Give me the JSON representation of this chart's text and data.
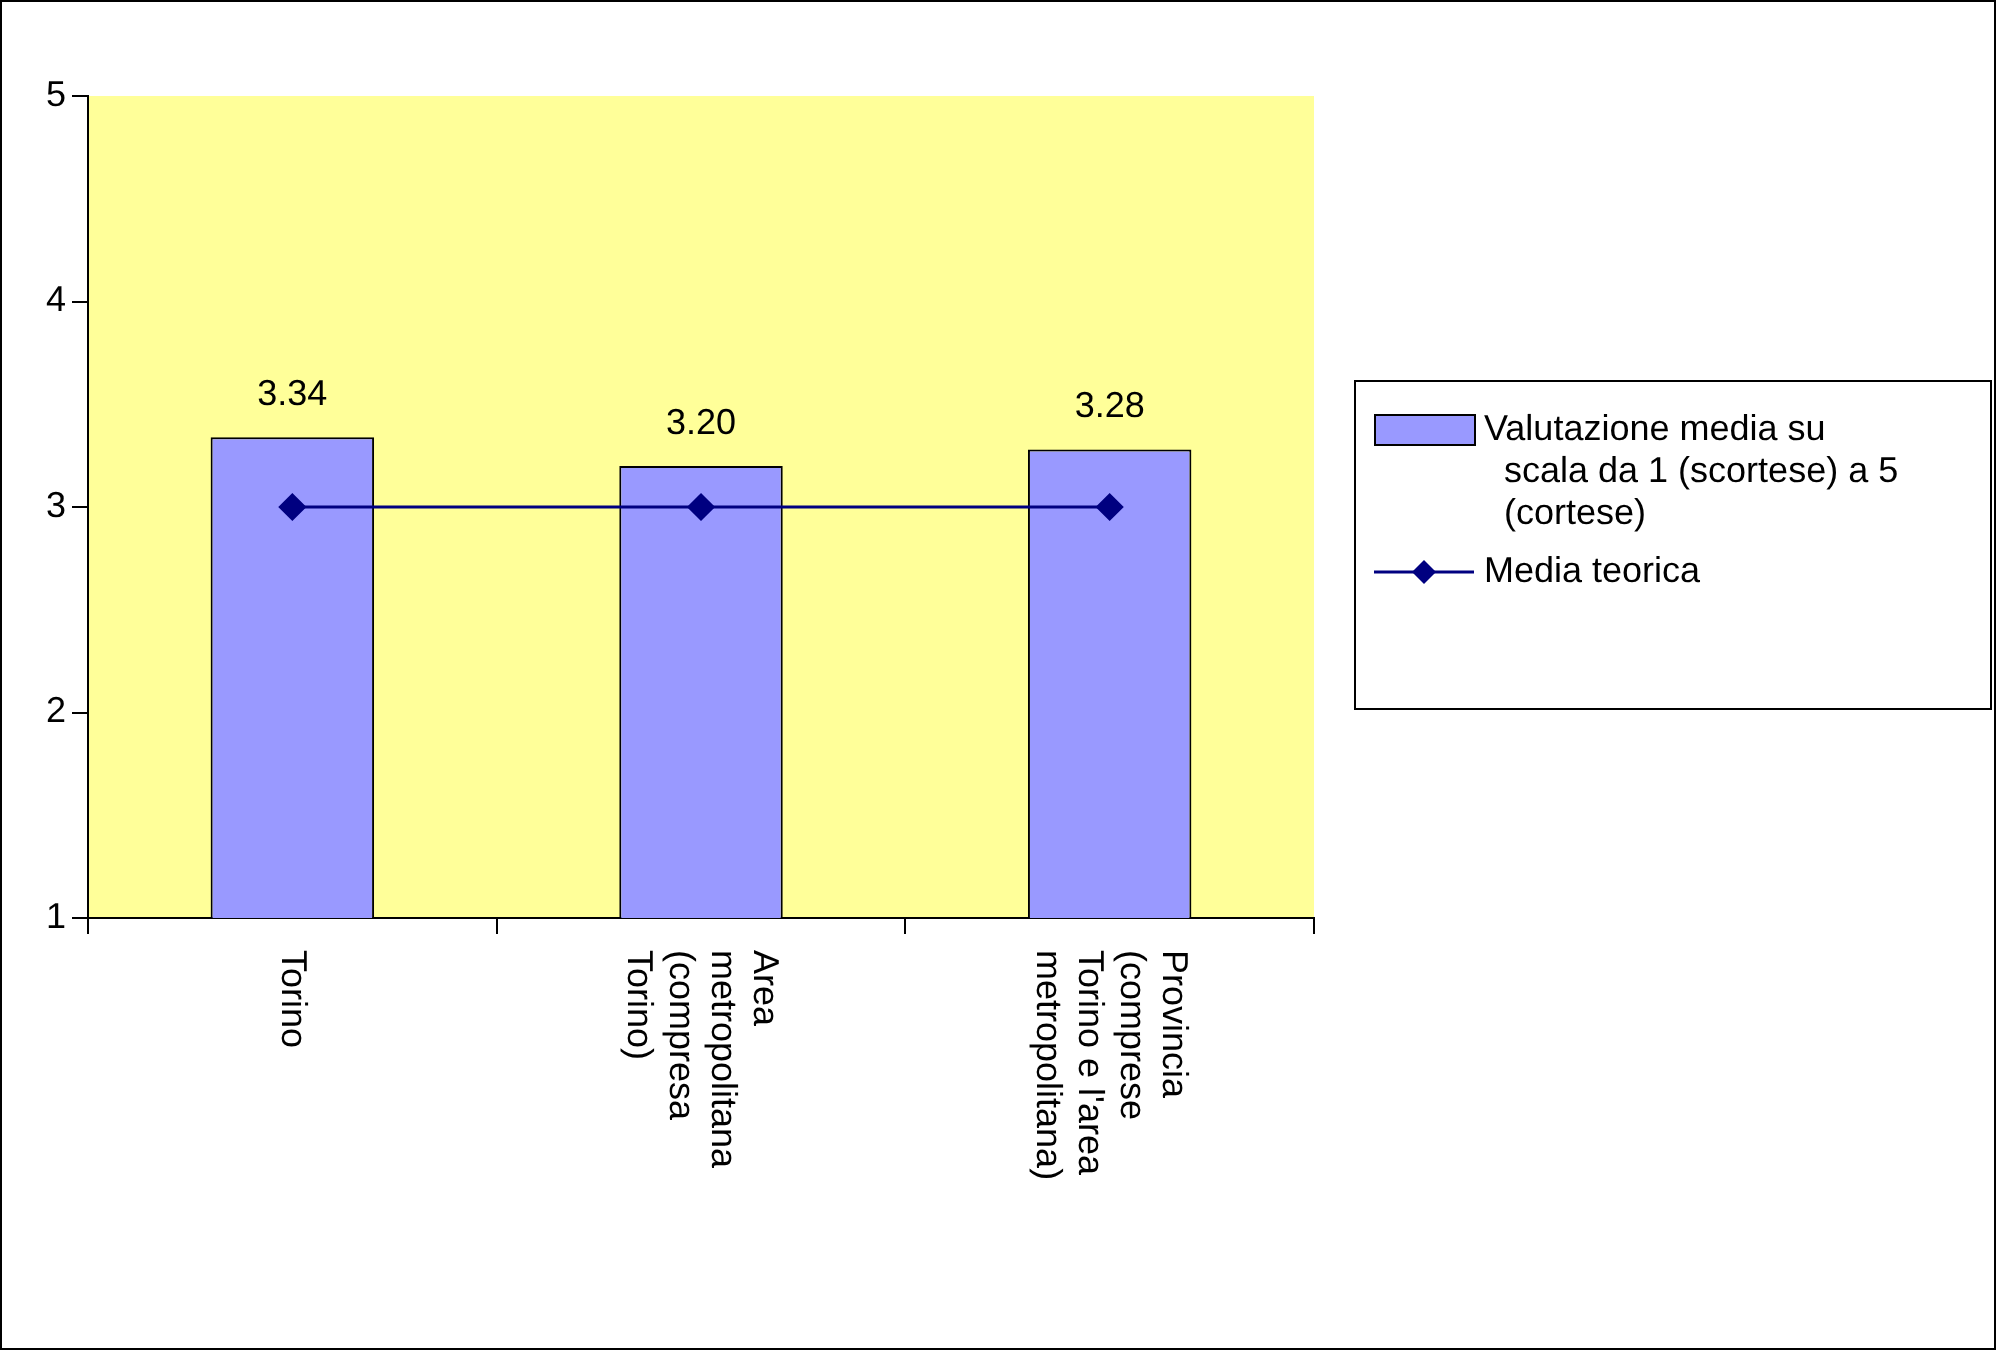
{
  "chart_data": {
    "type": "bar",
    "categories": [
      "Torino",
      "Area metropolitana (compresa Torino)",
      "Provincia (comprese Torino e l'area metropolitana)"
    ],
    "series": [
      {
        "name": "Valutazione media su scala da 1 (scortese) a 5 (cortese)",
        "color": "#9999ff",
        "values": [
          3.34,
          3.2,
          3.28
        ],
        "value_labels": [
          "3.34",
          "3.20",
          "3.28"
        ]
      },
      {
        "name": "Media teorica",
        "type": "line",
        "color": "#000080",
        "values": [
          3,
          3,
          3
        ],
        "marker": "diamond",
        "line_style": "solid"
      }
    ],
    "ylim": [
      1,
      5
    ],
    "yticks": [
      1,
      2,
      3,
      4,
      5
    ],
    "legend": "right"
  }
}
